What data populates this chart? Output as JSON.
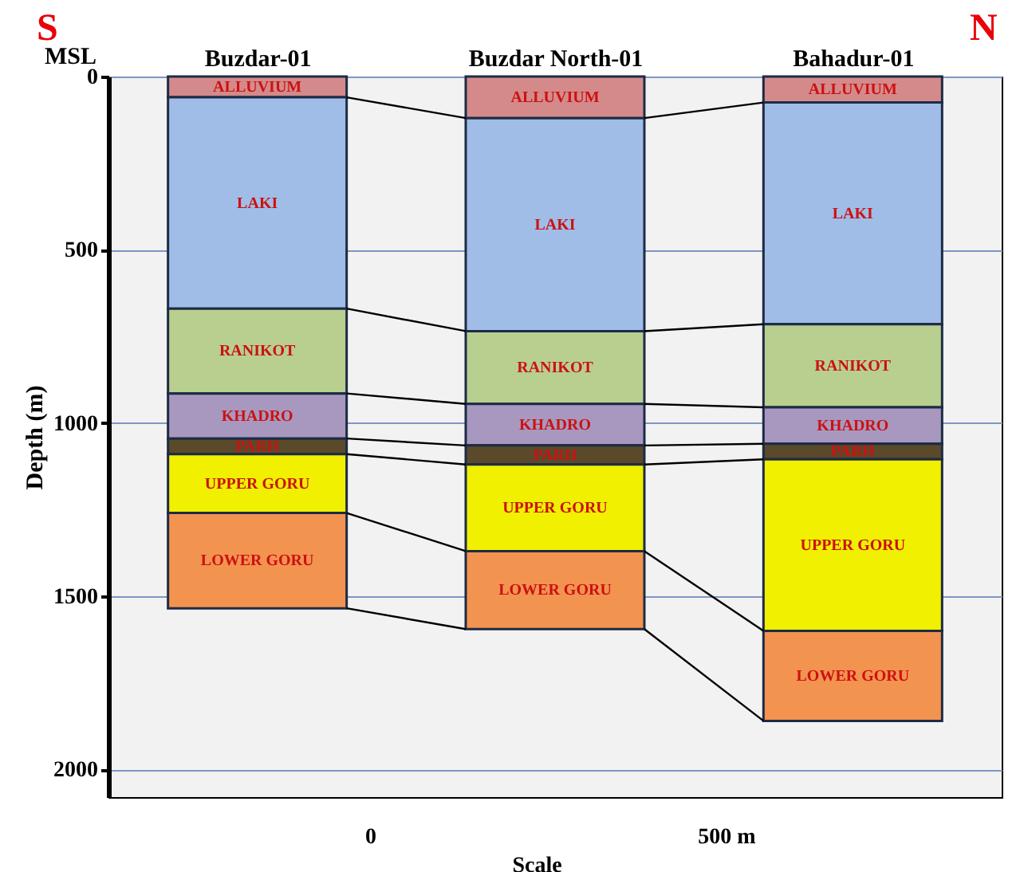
{
  "chart_data": {
    "type": "bar",
    "stacked": true,
    "ylabel": "Depth (m)",
    "categories": [
      "Buzdar-01",
      "Buzdar North-01",
      "Bahadur-01"
    ],
    "series": [
      {
        "name": "ALLUVIUM",
        "color": "#d48a8a",
        "values": [
          60,
          120,
          75
        ]
      },
      {
        "name": "LAKI",
        "color": "#a0bde8",
        "values": [
          610,
          615,
          640
        ]
      },
      {
        "name": "RANIKOT",
        "color": "#b8cf90",
        "values": [
          245,
          210,
          240
        ]
      },
      {
        "name": "KHADRO",
        "color": "#a898c0",
        "values": [
          130,
          120,
          105
        ]
      },
      {
        "name": "PARH",
        "color": "#5a4a2a",
        "values": [
          45,
          55,
          45
        ]
      },
      {
        "name": "UPPER GORU",
        "color": "#f0f000",
        "values": [
          170,
          250,
          495
        ]
      },
      {
        "name": "LOWER GORU",
        "color": "#f39350",
        "values": [
          275,
          225,
          260
        ]
      }
    ],
    "ylim": [
      2080,
      0
    ],
    "yticks": [
      0,
      500,
      1000,
      1500,
      2000
    ],
    "grid": "y",
    "annotations": [
      "S",
      "N",
      "MSL",
      "0",
      "500 m",
      "Scale"
    ]
  }
}
